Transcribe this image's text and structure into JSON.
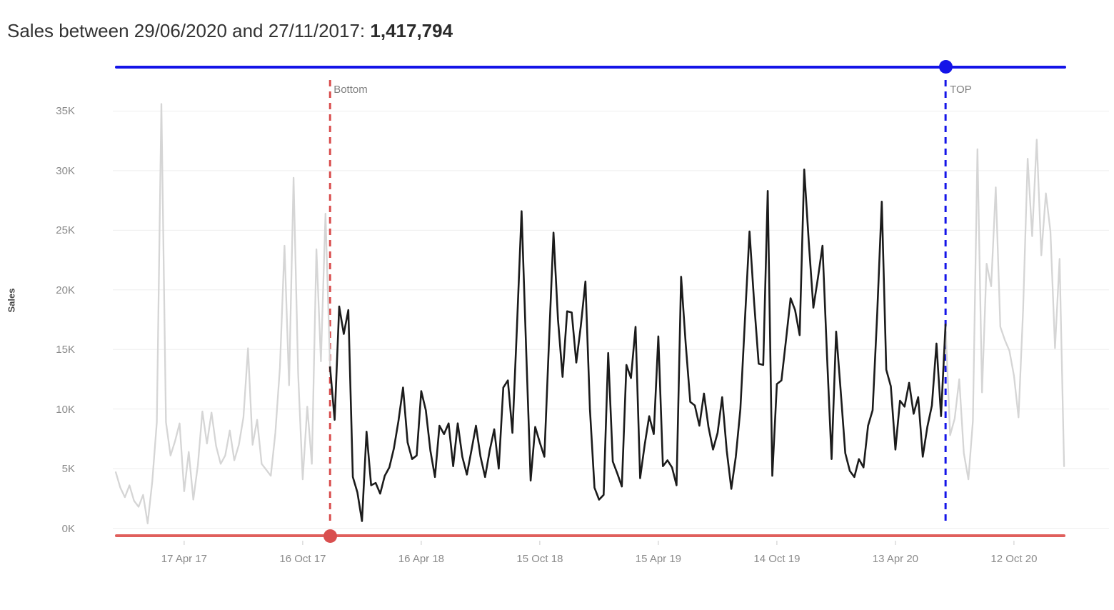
{
  "title": {
    "prefix": "Sales between 29/06/2020 and 27/11/2017: ",
    "total": "1,417,794"
  },
  "sliders": {
    "top": {
      "label": "TOP",
      "date": "29/06/2020",
      "color": "#1414e8",
      "week_index": 182
    },
    "bottom": {
      "label": "Bottom",
      "date": "27/11/2017",
      "color": "#d94f4f",
      "week_index": 47
    }
  },
  "chart_data": {
    "type": "line",
    "title": "Sales between 29/06/2020 and 27/11/2017: 1,417,794",
    "ylabel": "Sales",
    "xlabel": "",
    "grid": "horizontal",
    "legend": "none",
    "x_start_date": "2017-01-02",
    "x_interval": "weekly",
    "x_tick_labels": [
      "17 Apr 17",
      "16 Oct 17",
      "16 Apr 18",
      "15 Oct 18",
      "15 Apr 19",
      "14 Oct 19",
      "13 Apr 20",
      "12 Oct 20"
    ],
    "x_tick_week_indices": [
      15,
      41,
      67,
      93,
      119,
      145,
      171,
      197
    ],
    "y_tick_labels": [
      "0K",
      "5K",
      "10K",
      "15K",
      "20K",
      "25K",
      "30K",
      "35K"
    ],
    "y_tick_values_k": [
      0,
      5,
      10,
      15,
      20,
      25,
      30,
      35
    ],
    "ylim_k": [
      0,
      35
    ],
    "values_unit": "thousands",
    "values_k": [
      4.7,
      3.4,
      2.6,
      3.6,
      2.3,
      1.8,
      2.8,
      0.4,
      3.9,
      8.9,
      35.6,
      8.9,
      6.1,
      7.3,
      8.8,
      3.1,
      6.4,
      2.4,
      5.3,
      9.8,
      7.1,
      9.7,
      6.9,
      5.4,
      6.1,
      8.2,
      5.7,
      7.0,
      9.3,
      15.1,
      7.0,
      9.1,
      5.4,
      4.9,
      4.4,
      8.0,
      13.5,
      23.7,
      12.0,
      29.4,
      13.0,
      4.1,
      10.2,
      5.4,
      23.4,
      14.0,
      26.4,
      13.5,
      9.1,
      18.6,
      16.3,
      18.3,
      4.3,
      3.0,
      0.6,
      8.1,
      3.6,
      3.8,
      2.9,
      4.4,
      5.1,
      6.7,
      9.0,
      11.8,
      7.2,
      5.8,
      6.1,
      11.5,
      9.9,
      6.5,
      4.3,
      8.6,
      7.9,
      8.8,
      5.2,
      8.8,
      6.0,
      4.5,
      6.5,
      8.6,
      6.0,
      4.3,
      6.5,
      8.3,
      5.0,
      11.8,
      12.4,
      8.0,
      17.0,
      26.6,
      15.0,
      4.0,
      8.5,
      7.2,
      6.0,
      15.5,
      24.8,
      17.5,
      12.7,
      18.2,
      18.1,
      13.9,
      17.0,
      20.7,
      10.0,
      3.4,
      2.4,
      2.8,
      14.7,
      5.6,
      4.6,
      3.5,
      13.7,
      12.6,
      16.9,
      4.2,
      7.0,
      9.4,
      7.9,
      16.1,
      5.2,
      5.7,
      5.1,
      3.6,
      21.1,
      15.5,
      10.6,
      10.3,
      8.6,
      11.3,
      8.5,
      6.6,
      8.0,
      11.0,
      6.5,
      3.3,
      6.0,
      10.0,
      17.5,
      24.9,
      19.0,
      13.8,
      13.7,
      28.3,
      4.4,
      12.1,
      12.4,
      15.8,
      19.3,
      18.3,
      16.2,
      30.1,
      24.0,
      18.5,
      21.0,
      23.7,
      14.5,
      5.8,
      16.5,
      11.5,
      6.3,
      4.8,
      4.3,
      5.8,
      5.1,
      8.6,
      9.9,
      18.0,
      27.4,
      13.3,
      11.9,
      6.6,
      10.7,
      10.2,
      12.2,
      9.6,
      11.0,
      6.0,
      8.5,
      10.3,
      15.5,
      9.4,
      17.1,
      7.8,
      9.2,
      12.5,
      6.3,
      4.1,
      9.0,
      31.8,
      11.4,
      22.2,
      20.3,
      28.6,
      16.9,
      15.8,
      14.9,
      12.8,
      9.3,
      18.3,
      31.0,
      24.5,
      32.6,
      22.9,
      28.1,
      24.9,
      15.1,
      22.6,
      5.2
    ],
    "selected_range": {
      "start_week_index": 47,
      "end_week_index": 182,
      "start_marker_label": "Bottom",
      "end_marker_label": "TOP"
    },
    "series_colors": {
      "selected": "#1b1b1b",
      "unselected": "#d5d5d5"
    },
    "marker_colors": {
      "bottom": "#d94f4f",
      "top": "#1414e8"
    },
    "grid_color": "#eeeeee"
  }
}
